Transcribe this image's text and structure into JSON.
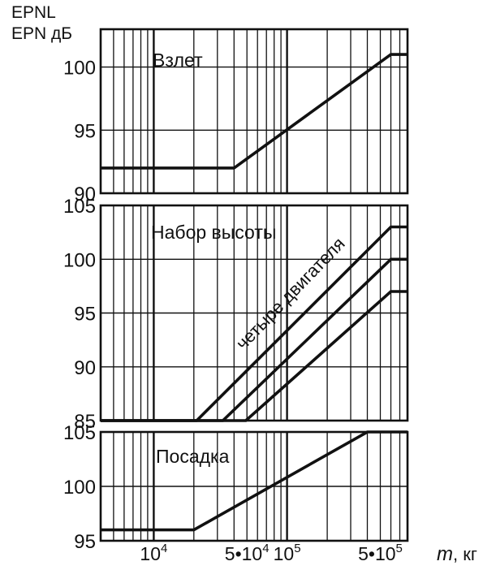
{
  "header": {
    "line1": "EPNL",
    "line2": "EPN дБ"
  },
  "x_axis": {
    "tick_labels": [
      {
        "mant": "",
        "exp": "4",
        "base": "10",
        "x": 10000
      },
      {
        "mant": "5•",
        "exp": "4",
        "base": "10",
        "x": 50000
      },
      {
        "mant": "",
        "exp": "5",
        "base": "10",
        "x": 100000
      },
      {
        "mant": "5•",
        "exp": "5",
        "base": "10",
        "x": 500000
      }
    ],
    "var_label": "m",
    "unit_label": ", кг"
  },
  "chart_data": [
    {
      "type": "line",
      "title": "Взлет",
      "xscale": "log",
      "xlim": [
        4000,
        800000
      ],
      "ylim": [
        90,
        103
      ],
      "yticks": [
        90,
        95,
        100
      ],
      "grid": true,
      "series": [
        {
          "x": [
            4000,
            40000,
            600000,
            800000
          ],
          "y": [
            92,
            92,
            101,
            101
          ]
        }
      ]
    },
    {
      "type": "line",
      "title": "Набор высоты",
      "annotation": "четыре двигателя",
      "xscale": "log",
      "xlim": [
        4000,
        800000
      ],
      "ylim": [
        85,
        105
      ],
      "yticks": [
        85,
        90,
        95,
        100,
        105
      ],
      "grid": true,
      "series": [
        {
          "x": [
            4000,
            21000,
            600000,
            800000
          ],
          "y": [
            85,
            85,
            103,
            103
          ]
        },
        {
          "x": [
            4000,
            33000,
            600000,
            800000
          ],
          "y": [
            85,
            85,
            100,
            100
          ]
        },
        {
          "x": [
            4000,
            49000,
            600000,
            800000
          ],
          "y": [
            85,
            85,
            97,
            97
          ]
        }
      ]
    },
    {
      "type": "line",
      "title": "Посадка",
      "xscale": "log",
      "xlim": [
        4000,
        800000
      ],
      "ylim": [
        95,
        105
      ],
      "yticks": [
        95,
        100,
        105
      ],
      "grid": true,
      "series": [
        {
          "x": [
            4000,
            20000,
            400000,
            800000
          ],
          "y": [
            96,
            96,
            105,
            105
          ]
        }
      ]
    }
  ]
}
